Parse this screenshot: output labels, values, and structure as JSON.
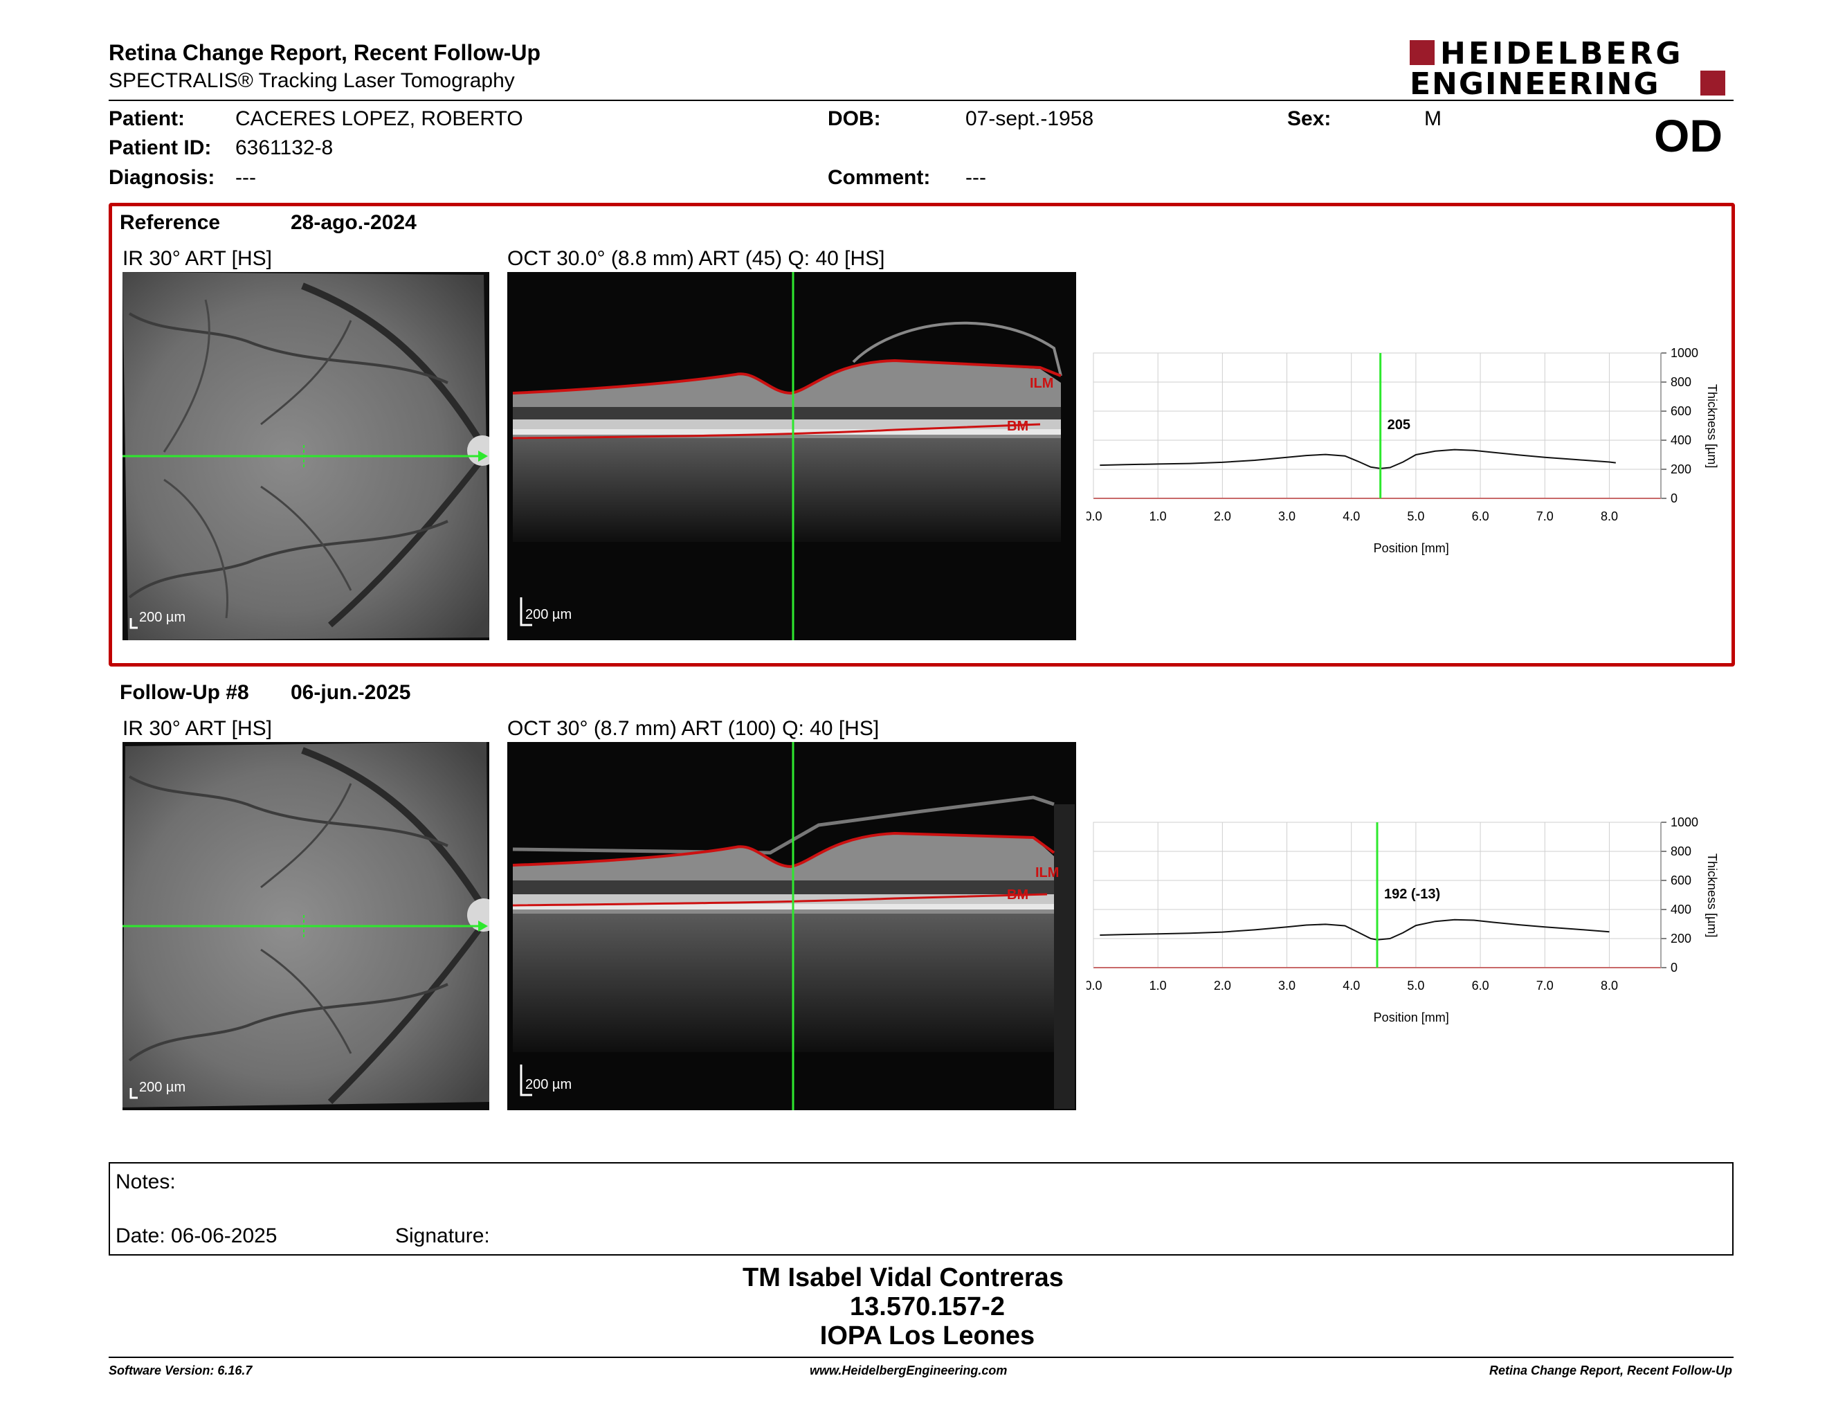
{
  "header": {
    "title": "Retina Change Report, Recent Follow-Up",
    "subtitle": "SPECTRALIS® Tracking Laser Tomography",
    "logo_line1": "HEIDELBERG",
    "logo_line2": "ENGINEERING",
    "eye": "OD"
  },
  "patient": {
    "name_label": "Patient:",
    "name": "CACERES LOPEZ, ROBERTO",
    "id_label": "Patient ID:",
    "id": "6361132-8",
    "diagnosis_label": "Diagnosis:",
    "diagnosis": "---",
    "dob_label": "DOB:",
    "dob": "07-sept.-1958",
    "comment_label": "Comment:",
    "comment": "---",
    "sex_label": "Sex:",
    "sex": "M"
  },
  "reference": {
    "label": "Reference",
    "date": "28-ago.-2024",
    "ir_title": "IR 30° ART [HS]",
    "oct_title": "OCT 30.0° (8.8 mm) ART (45) Q: 40 [HS]",
    "scale_ir": "200 µm",
    "scale_oct": "200 µm",
    "ilm": "ILM",
    "bm": "BM"
  },
  "followup": {
    "label": "Follow-Up #8",
    "date": "06-jun.-2025",
    "ir_title": "IR 30° ART [HS]",
    "oct_title": "OCT 30° (8.7 mm) ART (100) Q: 40 [HS]",
    "scale_ir": "200 µm",
    "scale_oct": "200 µm",
    "ilm": "ILM",
    "bm": "BM"
  },
  "chart_data": [
    {
      "type": "line",
      "xlabel": "Position [mm]",
      "ylabel": "Thickness [µm]",
      "xlim": [
        0,
        8.8
      ],
      "ylim": [
        0,
        1000
      ],
      "x_ticks": [
        "0.0",
        "1.0",
        "2.0",
        "3.0",
        "4.0",
        "5.0",
        "6.0",
        "7.0",
        "8.0"
      ],
      "y_ticks": [
        "0",
        "200",
        "400",
        "600",
        "800",
        "1000"
      ],
      "grid": true,
      "cursor_x": 4.45,
      "cursor_label": "205",
      "x": [
        0.1,
        0.5,
        1.0,
        1.5,
        2.0,
        2.5,
        3.0,
        3.3,
        3.6,
        3.9,
        4.1,
        4.3,
        4.45,
        4.6,
        4.8,
        5.0,
        5.3,
        5.6,
        5.9,
        6.2,
        6.6,
        7.0,
        7.5,
        8.0,
        8.1
      ],
      "y": [
        228,
        232,
        236,
        240,
        248,
        262,
        282,
        295,
        302,
        292,
        255,
        215,
        205,
        212,
        250,
        300,
        325,
        335,
        330,
        316,
        298,
        282,
        266,
        250,
        245
      ]
    },
    {
      "type": "line",
      "xlabel": "Position [mm]",
      "ylabel": "Thickness [µm]",
      "xlim": [
        0,
        8.8
      ],
      "ylim": [
        0,
        1000
      ],
      "x_ticks": [
        "0.0",
        "1.0",
        "2.0",
        "3.0",
        "4.0",
        "5.0",
        "6.0",
        "7.0",
        "8.0"
      ],
      "y_ticks": [
        "0",
        "200",
        "400",
        "600",
        "800",
        "1000"
      ],
      "grid": true,
      "cursor_x": 4.4,
      "cursor_label": "192 (-13)",
      "x": [
        0.1,
        0.5,
        1.0,
        1.5,
        2.0,
        2.5,
        3.0,
        3.3,
        3.6,
        3.9,
        4.1,
        4.3,
        4.4,
        4.6,
        4.8,
        5.0,
        5.3,
        5.6,
        5.9,
        6.2,
        6.6,
        7.0,
        7.5,
        8.0
      ],
      "y": [
        224,
        228,
        232,
        237,
        245,
        260,
        280,
        293,
        298,
        288,
        245,
        200,
        192,
        200,
        240,
        290,
        318,
        330,
        326,
        312,
        295,
        280,
        264,
        246
      ]
    }
  ],
  "notes": {
    "label": "Notes:",
    "date_label": "Date: 06-06-2025",
    "signature_label": "Signature:"
  },
  "signer": {
    "name": "TM Isabel Vidal Contreras",
    "rut": "13.570.157-2",
    "clinic": "IOPA Los Leones"
  },
  "footer": {
    "software": "Software Version: 6.16.7",
    "website": "www.HeidelbergEngineering.com",
    "report": "Retina Change Report, Recent Follow-Up"
  }
}
